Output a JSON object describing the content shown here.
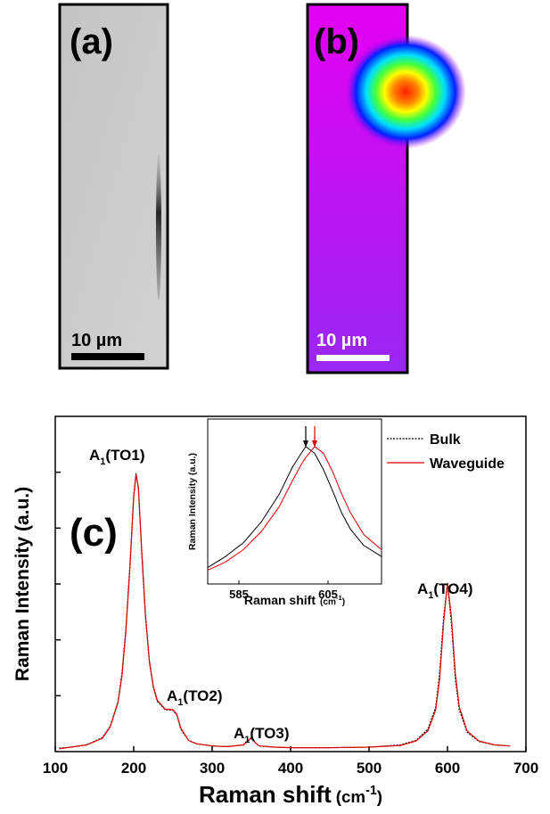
{
  "images": [
    {
      "label": "(a)",
      "scale_bar": "10 µm"
    },
    {
      "label": "(b)",
      "scale_bar": "10 µm"
    }
  ],
  "chart_data": [
    {
      "type": "line",
      "panel_label": "(c)",
      "x_label": "Raman shift",
      "x_unit": "(cm",
      "x_unit_sup": "-1",
      "x_unit_end": ")",
      "y_label": "Raman Intensity (a.u.)",
      "xlim": [
        100,
        700
      ],
      "xticks": [
        100,
        200,
        300,
        400,
        500,
        600,
        700
      ],
      "ylim": [
        0,
        6
      ],
      "yticks": [
        1,
        2,
        3,
        4,
        5
      ],
      "legend": "top-right",
      "annotations": [
        {
          "text": "A",
          "sub": "1",
          "rest": "(TO1)"
        },
        {
          "text": "A",
          "sub": "1",
          "rest": "(TO2)"
        },
        {
          "text": "A",
          "sub": "1",
          "rest": "(TO3)"
        },
        {
          "text": "A",
          "sub": "1",
          "rest": "(TO4)"
        }
      ],
      "x": [
        105,
        120,
        140,
        160,
        170,
        180,
        185,
        190,
        195,
        200,
        203,
        206,
        210,
        215,
        220,
        225,
        230,
        240,
        250,
        255,
        260,
        270,
        280,
        300,
        320,
        340,
        345,
        350,
        355,
        360,
        380,
        400,
        450,
        500,
        540,
        560,
        575,
        585,
        590,
        595,
        600,
        605,
        610,
        615,
        625,
        640,
        660,
        680
      ],
      "series": [
        {
          "name": "Bulk",
          "color": "#000000",
          "style": "dotted",
          "values": [
            0.06,
            0.08,
            0.12,
            0.25,
            0.45,
            0.9,
            1.4,
            2.2,
            3.3,
            4.6,
            4.98,
            4.7,
            3.6,
            2.4,
            1.6,
            1.15,
            0.9,
            0.75,
            0.74,
            0.65,
            0.4,
            0.2,
            0.14,
            0.1,
            0.09,
            0.12,
            0.18,
            0.24,
            0.16,
            0.1,
            0.08,
            0.07,
            0.07,
            0.08,
            0.12,
            0.2,
            0.4,
            0.8,
            1.4,
            2.4,
            3.0,
            2.3,
            1.3,
            0.75,
            0.35,
            0.18,
            0.12,
            0.1
          ]
        },
        {
          "name": "Waveguide",
          "color": "#e00000",
          "style": "solid",
          "values": [
            0.05,
            0.08,
            0.12,
            0.24,
            0.44,
            0.88,
            1.35,
            2.15,
            3.25,
            4.55,
            4.96,
            4.72,
            3.65,
            2.45,
            1.62,
            1.17,
            0.92,
            0.76,
            0.75,
            0.67,
            0.42,
            0.2,
            0.14,
            0.1,
            0.09,
            0.12,
            0.19,
            0.25,
            0.16,
            0.1,
            0.08,
            0.07,
            0.07,
            0.08,
            0.11,
            0.19,
            0.37,
            0.75,
            1.3,
            2.3,
            3.02,
            2.4,
            1.4,
            0.8,
            0.37,
            0.19,
            0.12,
            0.1
          ]
        }
      ]
    },
    {
      "type": "line",
      "x_label": "Raman shift",
      "x_unit": "(cm",
      "x_unit_sup": "-1",
      "x_unit_end": ")",
      "y_label": "Raman Intensity (a.u.)",
      "xlim": [
        578,
        617
      ],
      "xticks": [
        585,
        605
      ],
      "ylim": [
        0,
        1.2
      ],
      "x": [
        578,
        582,
        586,
        590,
        594,
        597,
        599,
        600,
        602,
        604,
        606,
        608,
        610,
        613,
        617
      ],
      "series": [
        {
          "name": "Bulk",
          "color": "#000000",
          "style": "solid",
          "values": [
            0.12,
            0.2,
            0.3,
            0.45,
            0.65,
            0.85,
            0.95,
            1.0,
            0.95,
            0.83,
            0.68,
            0.52,
            0.4,
            0.28,
            0.2
          ]
        },
        {
          "name": "Waveguide",
          "color": "#e00000",
          "style": "solid",
          "values": [
            0.1,
            0.16,
            0.25,
            0.38,
            0.56,
            0.75,
            0.87,
            0.92,
            1.0,
            0.95,
            0.82,
            0.66,
            0.52,
            0.36,
            0.25
          ]
        }
      ]
    }
  ]
}
